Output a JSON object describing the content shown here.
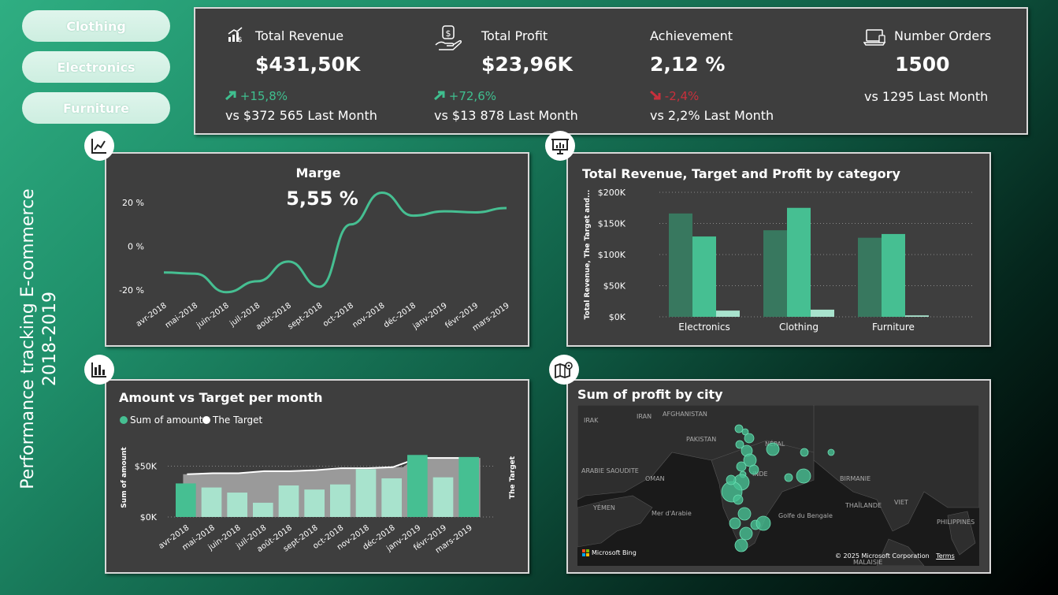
{
  "slicers": [
    "Clothing",
    "Electronics",
    "Furniture"
  ],
  "page_title": {
    "line1": "Performance tracking E-commerce",
    "line2": "2018-2019"
  },
  "kpis": {
    "revenue": {
      "label": "Total Revenue",
      "value": "$431,50K",
      "delta": "+15,8%",
      "vs": "vs $372 565 Last Month"
    },
    "profit": {
      "label": "Total Profit",
      "value": "$23,96K",
      "delta": "+72,6%",
      "vs": "vs $13 878 Last Month"
    },
    "achievement": {
      "label": "Achievement",
      "value": "2,12 %",
      "delta": "-2,4%",
      "vs": "vs 2,2% Last Month"
    },
    "orders": {
      "label": "Number Orders",
      "value": "1500",
      "vs": "vs 1295 Last Month"
    }
  },
  "colors": {
    "accent": "#46bf92",
    "dark_green": "#38785f",
    "light_green": "#a8e3cd",
    "panel": "#3e3e3e",
    "down": "#c8303c"
  },
  "icons": [
    "line-chart-icon",
    "presentation-chart-icon",
    "bar-chart-icon",
    "map-icon",
    "revenue-icon",
    "money-hand-icon",
    "laptop-icon"
  ],
  "chart_data": [
    {
      "type": "line",
      "title": "Marge",
      "big_value": "5,55 %",
      "categories": [
        "avr-2018",
        "mai-2018",
        "juin-2018",
        "juil-2018",
        "août-2018",
        "sept-2018",
        "oct-2018",
        "nov-2018",
        "déc-2018",
        "janv-2019",
        "févr-2019",
        "mars-2019"
      ],
      "values": [
        -12,
        -12.5,
        -21,
        -16,
        -7,
        -18.5,
        10,
        24.5,
        14,
        16,
        15.5,
        17.5
      ],
      "yticks": [
        "20 %",
        "0 %",
        "-20 %"
      ],
      "ytick_values": [
        20,
        0,
        -20
      ],
      "ylim": [
        -20,
        25
      ]
    },
    {
      "type": "bar",
      "title": "Total Revenue, Target and Profit by category",
      "ylabel": "Total Revenue, The Target and...",
      "categories": [
        "Electronics",
        "Clothing",
        "Furniture"
      ],
      "series": [
        {
          "values": [
            166000,
            139000,
            127000
          ]
        },
        {
          "values": [
            129000,
            175000,
            133000
          ]
        },
        {
          "values": [
            10000,
            11500,
            2300
          ]
        }
      ],
      "yticks": [
        "$200K",
        "$150K",
        "$100K",
        "$50K",
        "$0K"
      ],
      "ytick_values": [
        200000,
        150000,
        100000,
        50000,
        0
      ],
      "ylim": [
        0,
        200000
      ]
    },
    {
      "type": "bar",
      "title": "Amount vs Target per month",
      "legend": [
        "Sum of amount",
        "The Target"
      ],
      "ylabel": "Sum of amount",
      "y2label": "The Target",
      "categories": [
        "avr-2018",
        "mai-2018",
        "juin-2018",
        "juil-2018",
        "août-2018",
        "sept-2018",
        "oct-2018",
        "nov-2018",
        "déc-2018",
        "janv-2019",
        "févr-2019",
        "mars-2019"
      ],
      "amount": [
        33000,
        29000,
        24000,
        14000,
        31000,
        27000,
        32000,
        47000,
        38000,
        61000,
        39000,
        59000
      ],
      "target": [
        42000,
        43000,
        43000,
        45000,
        45000,
        46000,
        48000,
        48000,
        49000,
        58000,
        58000,
        58000
      ],
      "yticks": [
        "$50K",
        "$0K"
      ],
      "ytick_values": [
        50000,
        0
      ],
      "ylim": [
        0,
        65000
      ]
    }
  ],
  "map": {
    "title": "Sum of profit by city",
    "labels": [
      "AFGHANISTAN",
      "IRAK",
      "IRAN",
      "PAKISTAN",
      "ARABIE SAOUDITE",
      "OMAN",
      "YÉMEN",
      "Mer d'Arabie",
      "INDE",
      "NÉPAL",
      "BIRMANIE",
      "THAÏLANDE",
      "VIET",
      "Golfe du Bengale",
      "PHILIPPINES",
      "MALAISIE"
    ],
    "attribution": "© 2025 Microsoft Corporation",
    "terms": "Terms",
    "logo": "Microsoft Bing"
  }
}
